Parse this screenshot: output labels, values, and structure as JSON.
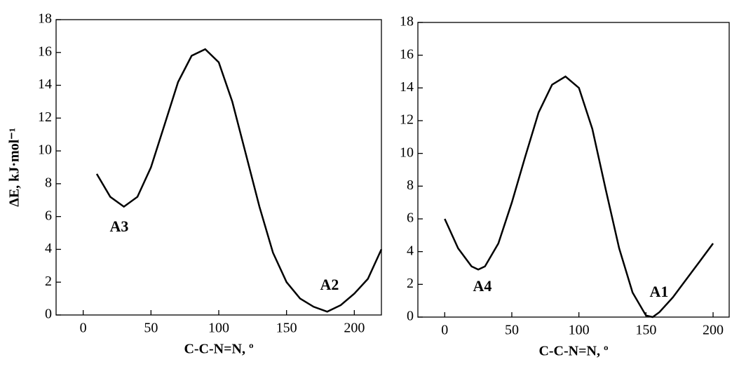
{
  "chart_data": [
    {
      "type": "line",
      "x_label": "C-C-N=N, º",
      "y_label": "ΔE, kJ·mol⁻¹",
      "x": [
        10,
        20,
        30,
        40,
        50,
        60,
        70,
        80,
        90,
        100,
        110,
        120,
        130,
        140,
        150,
        160,
        170,
        180,
        190,
        200,
        210,
        220
      ],
      "values": [
        8.6,
        7.2,
        6.6,
        7.2,
        9.0,
        11.6,
        14.2,
        15.8,
        16.2,
        15.4,
        13.0,
        9.8,
        6.6,
        3.8,
        2.0,
        1.0,
        0.5,
        0.2,
        0.6,
        1.3,
        2.2,
        4.0
      ],
      "color": "#000000",
      "xlim": [
        -20,
        220
      ],
      "ylim": [
        0,
        18
      ],
      "xticks": [
        0,
        50,
        100,
        150,
        200
      ],
      "yticks": [
        0,
        2,
        4,
        6,
        8,
        10,
        12,
        14,
        16,
        18
      ],
      "annotations": [
        "A3",
        "A2"
      ]
    },
    {
      "type": "line",
      "x_label": "C-C-N=N, º",
      "x": [
        0,
        10,
        20,
        25,
        30,
        40,
        50,
        60,
        70,
        80,
        90,
        100,
        110,
        120,
        130,
        140,
        150,
        155,
        160,
        170,
        180,
        190,
        200
      ],
      "values": [
        6.0,
        4.2,
        3.1,
        2.9,
        3.1,
        4.5,
        7.0,
        9.8,
        12.5,
        14.2,
        14.7,
        14.0,
        11.5,
        7.8,
        4.2,
        1.5,
        0.1,
        0.0,
        0.3,
        1.2,
        2.3,
        3.4,
        4.5
      ],
      "color": "#000000",
      "xlim": [
        -20,
        212
      ],
      "ylim": [
        0,
        18
      ],
      "xticks": [
        0,
        50,
        100,
        150,
        200
      ],
      "yticks": [
        0,
        2,
        4,
        6,
        8,
        10,
        12,
        14,
        16,
        18
      ],
      "annotations": [
        "A4",
        "A1"
      ]
    }
  ]
}
